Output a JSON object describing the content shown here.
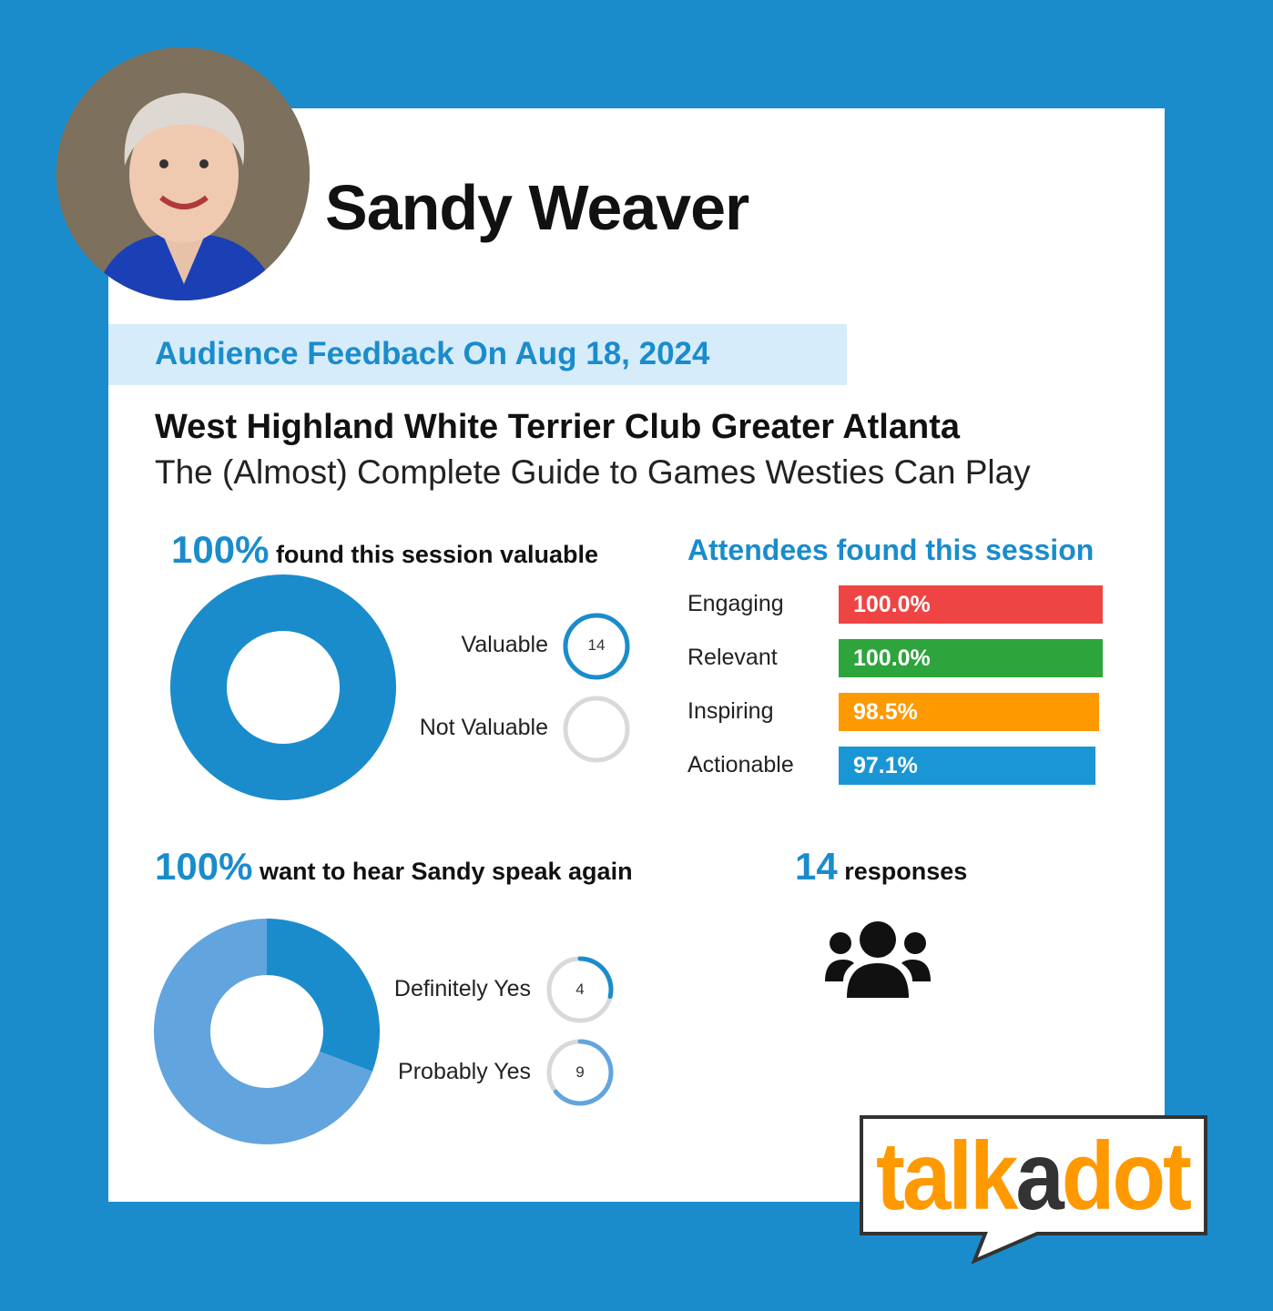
{
  "speaker": {
    "name": "Sandy Weaver"
  },
  "banner": "Audience Feedback On Aug 18, 2024",
  "organization": "West Highland White Terrier Club Greater Atlanta",
  "talk_title": "The (Almost) Complete Guide to Games Westies Can Play",
  "valuable": {
    "percent": "100%",
    "text": "found this session valuable"
  },
  "again": {
    "percent": "100%",
    "text": "want to hear Sandy speak again"
  },
  "responses": {
    "count": "14",
    "text": "responses",
    "icon": "people-group-icon"
  },
  "attributes_title": "Attendees found this session",
  "logo": "talkadot",
  "colors": {
    "primary": "#1a8ccc",
    "light": "#62a4de",
    "banner": "#d6ecfb",
    "engaging": "#ef4444",
    "relevant": "#2ea43c",
    "inspiring": "#ff9900",
    "actionable": "#1a96d4",
    "ring_track": "#d9d9d9",
    "logo_orange": "#ff9900"
  },
  "chart_data": [
    {
      "type": "pie",
      "donut": true,
      "categories": [
        "Valuable",
        "Not Valuable"
      ],
      "values": [
        14,
        0
      ],
      "labels": [
        "14",
        ""
      ],
      "colors": [
        "#1a8ccc",
        "#d9d9d9"
      ]
    },
    {
      "type": "bar",
      "orientation": "horizontal",
      "categories": [
        "Engaging",
        "Relevant",
        "Inspiring",
        "Actionable"
      ],
      "values": [
        100.0,
        100.0,
        98.5,
        97.1
      ],
      "labels": [
        "100.0%",
        "100.0%",
        "98.5%",
        "97.1%"
      ],
      "xlim": [
        0,
        100
      ],
      "colors": [
        "#ef4444",
        "#2ea43c",
        "#ff9900",
        "#1a96d4"
      ]
    },
    {
      "type": "pie",
      "donut": true,
      "categories": [
        "Definitely Yes",
        "Probably Yes"
      ],
      "values": [
        4,
        9
      ],
      "labels": [
        "4",
        "9"
      ],
      "colors": [
        "#1a8ccc",
        "#62a4de"
      ]
    }
  ]
}
